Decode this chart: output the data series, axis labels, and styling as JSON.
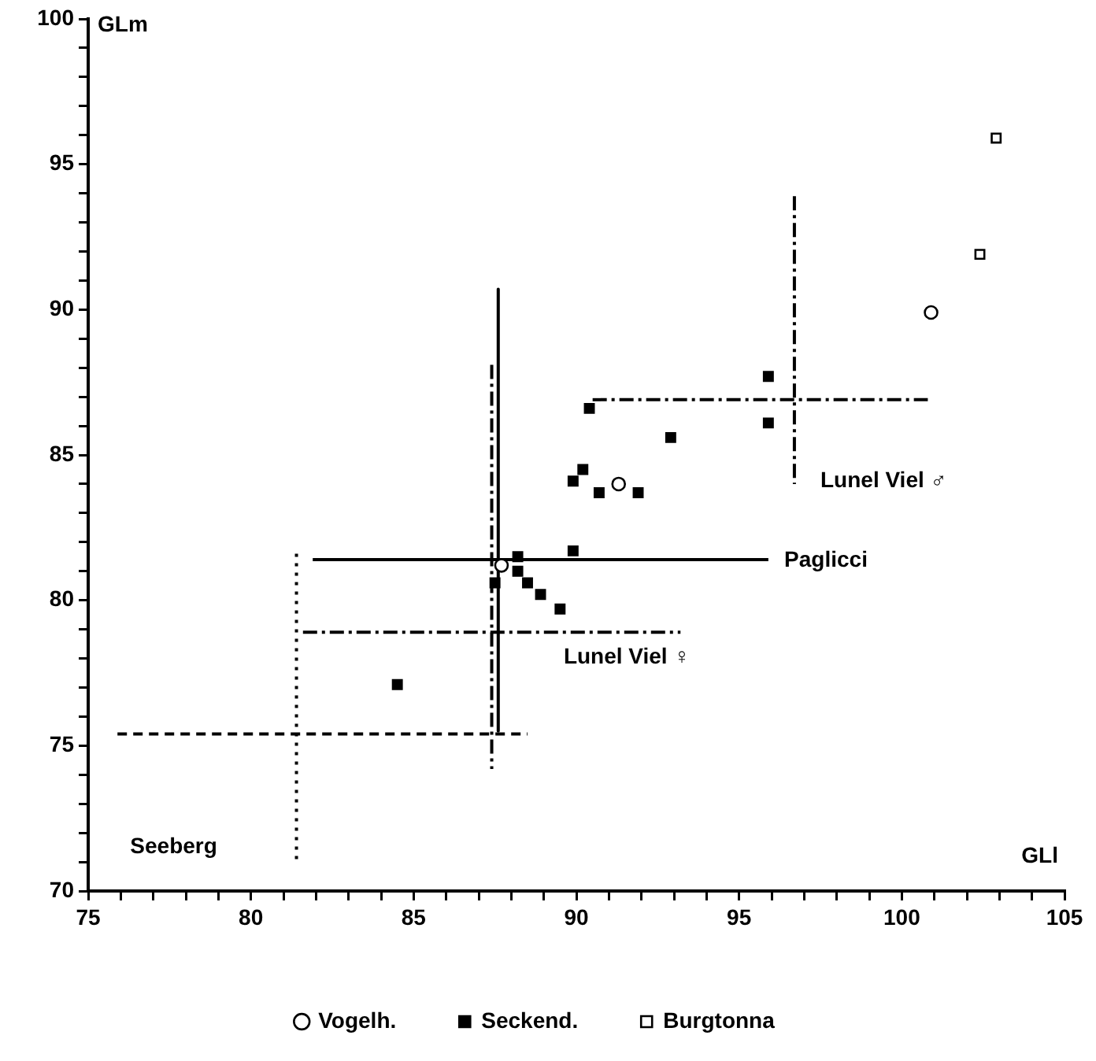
{
  "chart_data": {
    "type": "scatter",
    "xlabel": "GLl",
    "ylabel": "GLm",
    "xlim": [
      75,
      105
    ],
    "ylim": [
      70,
      100
    ],
    "xticks": [
      75,
      {
        "value": 76,
        "label": null
      },
      {
        "value": 77,
        "label": null
      },
      {
        "value": 78,
        "label": null
      },
      {
        "value": 79,
        "label": null
      },
      80,
      {
        "value": 81,
        "label": null
      },
      {
        "value": 82,
        "label": null
      },
      {
        "value": 83,
        "label": null
      },
      {
        "value": 84,
        "label": null
      },
      85,
      {
        "value": 86,
        "label": null
      },
      {
        "value": 87,
        "label": null
      },
      {
        "value": 88,
        "label": null
      },
      {
        "value": 89,
        "label": null
      },
      90,
      {
        "value": 91,
        "label": null
      },
      {
        "value": 92,
        "label": null
      },
      {
        "value": 93,
        "label": null
      },
      {
        "value": 94,
        "label": null
      },
      95,
      {
        "value": 96,
        "label": null
      },
      {
        "value": 97,
        "label": null
      },
      {
        "value": 98,
        "label": null
      },
      {
        "value": 99,
        "label": null
      },
      100,
      {
        "value": 101,
        "label": null
      },
      {
        "value": 102,
        "label": null
      },
      {
        "value": 103,
        "label": null
      },
      {
        "value": 104,
        "label": null
      },
      105
    ],
    "yticks": [
      70,
      {
        "value": 71,
        "label": null
      },
      {
        "value": 72,
        "label": null
      },
      {
        "value": 73,
        "label": null
      },
      {
        "value": 74,
        "label": null
      },
      75,
      {
        "value": 76,
        "label": null
      },
      {
        "value": 77,
        "label": null
      },
      {
        "value": 78,
        "label": null
      },
      {
        "value": 79,
        "label": null
      },
      80,
      {
        "value": 81,
        "label": null
      },
      {
        "value": 82,
        "label": null
      },
      {
        "value": 83,
        "label": null
      },
      {
        "value": 84,
        "label": null
      },
      85,
      {
        "value": 86,
        "label": null
      },
      {
        "value": 87,
        "label": null
      },
      {
        "value": 88,
        "label": null
      },
      {
        "value": 89,
        "label": null
      },
      90,
      {
        "value": 91,
        "label": null
      },
      {
        "value": 92,
        "label": null
      },
      {
        "value": 93,
        "label": null
      },
      {
        "value": 94,
        "label": null
      },
      95,
      {
        "value": 96,
        "label": null
      },
      {
        "value": 97,
        "label": null
      },
      {
        "value": 98,
        "label": null
      },
      {
        "value": 99,
        "label": null
      },
      100
    ],
    "grid": false,
    "legend": "bottom",
    "series": [
      {
        "name": "Vogelh.",
        "color": "#000000",
        "marker": "circle",
        "x": [
          91.3,
          87.7,
          100.9
        ],
        "values": [
          84.0,
          81.2,
          89.9
        ]
      },
      {
        "name": "Seckend.",
        "color": "#000000",
        "marker": "square",
        "x": [
          95.9,
          95.9,
          90.4,
          92.9,
          90.2,
          89.9,
          90.7,
          91.9,
          89.9,
          88.2,
          88.2,
          88.5,
          87.5,
          88.9,
          89.5,
          84.5
        ],
        "values": [
          87.7,
          86.1,
          86.6,
          85.6,
          84.5,
          84.1,
          83.7,
          83.7,
          81.7,
          81.5,
          81.0,
          80.6,
          80.6,
          80.2,
          79.7,
          77.1
        ]
      },
      {
        "name": "Burgtonna",
        "color": "#000000",
        "marker": "square",
        "x": [
          102.9,
          102.4
        ],
        "values": [
          95.9,
          91.9
        ]
      },
      {
        "type": "line",
        "color": "#000000",
        "marker": "none",
        "line_style": "solid",
        "x": [
          81.9,
          95.9
        ],
        "values": [
          81.4,
          81.4
        ]
      },
      {
        "type": "line",
        "color": "#000000",
        "marker": "none",
        "line_style": "solid",
        "x": [
          87.6,
          87.6
        ],
        "values": [
          90.7,
          75.5
        ]
      },
      {
        "type": "line",
        "color": "#000000",
        "marker": "none",
        "line_style": "dashdot",
        "x": [
          90.5,
          100.8
        ],
        "values": [
          86.9,
          86.9
        ]
      },
      {
        "type": "line",
        "color": "#000000",
        "marker": "none",
        "line_style": "dashdot",
        "x": [
          96.7,
          96.7
        ],
        "values": [
          93.9,
          84.0
        ]
      },
      {
        "type": "line",
        "color": "#000000",
        "marker": "none",
        "line_style": "dashdot",
        "x": [
          81.6,
          93.2
        ],
        "values": [
          78.9,
          78.9
        ]
      },
      {
        "type": "line",
        "color": "#000000",
        "marker": "none",
        "line_style": "dashdot",
        "x": [
          87.4,
          87.4
        ],
        "values": [
          88.1,
          74.2
        ]
      },
      {
        "type": "line",
        "color": "#000000",
        "marker": "none",
        "line_style": "dashed",
        "x": [
          75.9,
          88.5
        ],
        "values": [
          75.4,
          75.4
        ]
      },
      {
        "type": "line",
        "color": "#000000",
        "marker": "none",
        "line_style": "dotted",
        "x": [
          81.4,
          81.4
        ],
        "values": [
          81.6,
          71.0
        ]
      }
    ],
    "annotations": [
      "Paglicci",
      "Lunel Viel ♂",
      "Lunel Viel ♀",
      "Seeberg"
    ]
  }
}
